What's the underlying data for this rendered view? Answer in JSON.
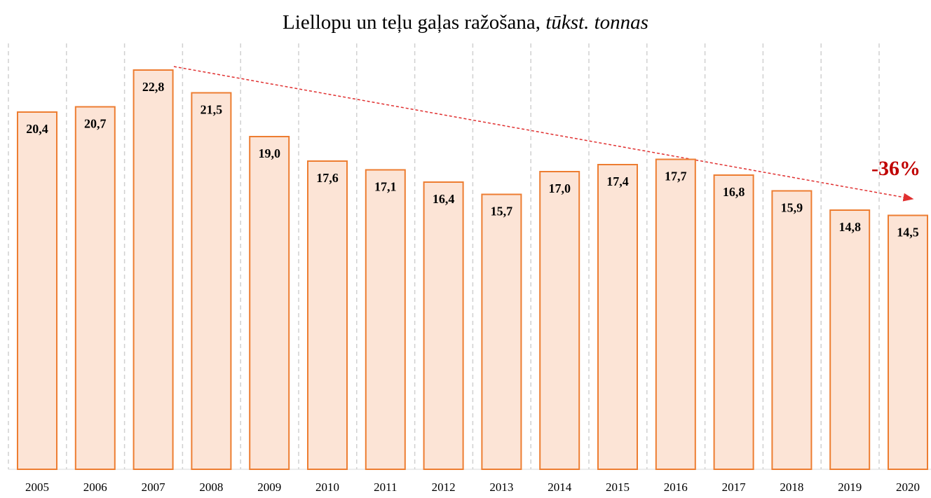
{
  "chart_data": {
    "type": "bar",
    "title": "Liellopu un teļu gaļas ražošana,",
    "title_italic": "tūkst. tonnas",
    "annotation": "-36%",
    "categories": [
      "2005",
      "2006",
      "2007",
      "2008",
      "2009",
      "2010",
      "2011",
      "2012",
      "2013",
      "2014",
      "2015",
      "2016",
      "2017",
      "2018",
      "2019",
      "2020"
    ],
    "values": [
      20.4,
      20.7,
      22.8,
      21.5,
      19.0,
      17.6,
      17.1,
      16.4,
      15.7,
      17.0,
      17.4,
      17.7,
      16.8,
      15.9,
      14.8,
      14.5
    ],
    "value_labels": [
      "20,4",
      "20,7",
      "22,8",
      "21,5",
      "19,0",
      "17,6",
      "17,1",
      "16,4",
      "15,7",
      "17,0",
      "17,4",
      "17,7",
      "16,8",
      "15,9",
      "14,8",
      "14,5"
    ],
    "color": "#fce4d6",
    "edge_color": "#ed7d31",
    "annotation_color": "#c00000",
    "ylim": [
      0,
      23
    ],
    "grid": false
  }
}
